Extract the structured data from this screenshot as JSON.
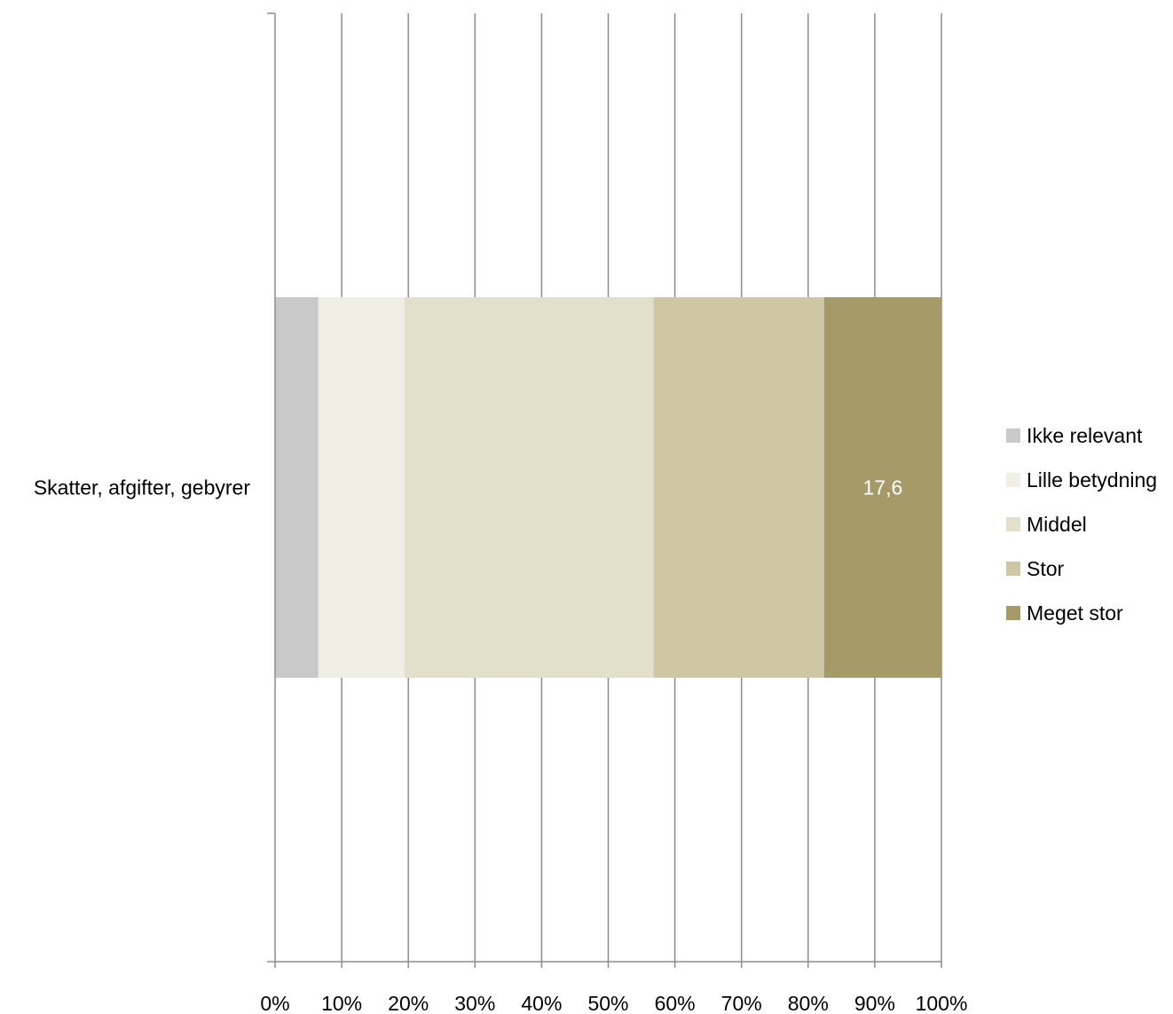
{
  "chart_data": {
    "type": "bar",
    "orientation": "horizontal",
    "stacked": "percent",
    "categories": [
      "Skatter, afgifter, gebyrer"
    ],
    "series": [
      {
        "name": "Ikke relevant",
        "values": [
          6.5
        ],
        "color": "#c9c9c9"
      },
      {
        "name": "Lille betydning",
        "values": [
          12.9
        ],
        "color": "#f0efe6"
      },
      {
        "name": "Middel",
        "values": [
          37.4
        ],
        "color": "#e2dfcb"
      },
      {
        "name": "Stor",
        "values": [
          25.6
        ],
        "color": "#cdc7a4"
      },
      {
        "name": "Meget stor",
        "values": [
          17.6
        ],
        "color": "#a59a68",
        "data_label": "17,6"
      }
    ],
    "x_ticks": [
      "0%",
      "10%",
      "20%",
      "30%",
      "40%",
      "50%",
      "60%",
      "70%",
      "80%",
      "90%",
      "100%"
    ],
    "xlim": [
      0,
      100
    ],
    "grid": true,
    "legend_position": "right"
  }
}
